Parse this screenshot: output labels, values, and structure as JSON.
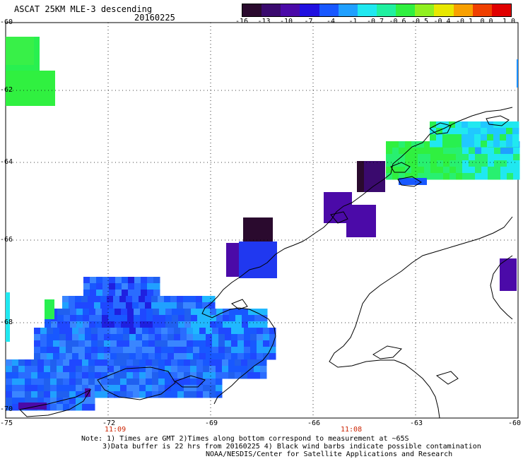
{
  "header": {
    "title": "ASCAT 25KM MLE-3 descending",
    "date": "20160225"
  },
  "colorbar": {
    "labels": [
      "-16",
      "-13",
      "-10",
      "-7",
      "-4",
      "-1",
      "-0.7",
      "-0.6",
      "-0.5",
      "-0.4",
      "-0.1",
      "0.0",
      "1.0"
    ],
    "colors": [
      "#2a0a2e",
      "#3a0a6e",
      "#4b0aa8",
      "#2010e0",
      "#1858ff",
      "#20a0ff",
      "#20e8f0",
      "#20f0a0",
      "#30f040",
      "#90f020",
      "#e8e800",
      "#f8a000",
      "#f04000",
      "#e00000"
    ]
  },
  "axes": {
    "lat_ticks": [
      "-60",
      "-62",
      "-64",
      "-66",
      "-68",
      "-70"
    ],
    "lon_ticks": [
      "-75",
      "-72",
      "-69",
      "-66",
      "-63",
      "-60"
    ],
    "time_labels": [
      "11:09",
      "11:08"
    ]
  },
  "notes": {
    "line1": "Note: 1) Times are GMT 2)Times along bottom correspond to measurement at ~65S",
    "line2": "3)Data buffer is 22 hrs from 20160225 4) Black wind barbs indicate possible contamination",
    "line3": "NOAA/NESDIS/Center for Satellite Applications and Research"
  }
}
